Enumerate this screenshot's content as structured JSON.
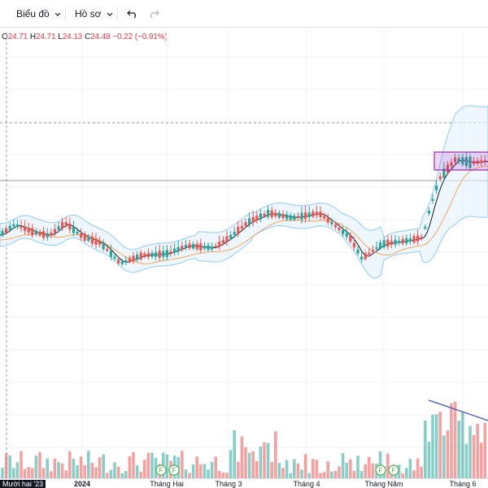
{
  "toolbar": {
    "chart_label": "Biểu đồ",
    "profile_label": "Hồ sơ"
  },
  "ohlc": {
    "open_key": "O",
    "open": "24.71",
    "high_key": "H",
    "high": "24.71",
    "low_key": "L",
    "low": "24.13",
    "close_key": "C",
    "close": "24.48",
    "change": "−0.22 (−0.91%)"
  },
  "colors": {
    "up": "#26a69a",
    "down": "#ef5350",
    "band_fill": "#e3f2fd",
    "band_line": "#90caf9",
    "ma_fast": "#131722",
    "ma_slow": "#f7a35c",
    "trend": "#3f51b5",
    "box": "#9c27b0"
  },
  "xaxis": {
    "labels": [
      "Mười hai '23",
      "2024",
      "Tháng Hai",
      "Tháng 3",
      "Tháng 4",
      "Tháng Năm",
      "Tháng 6"
    ],
    "event_marker": "F"
  }
}
